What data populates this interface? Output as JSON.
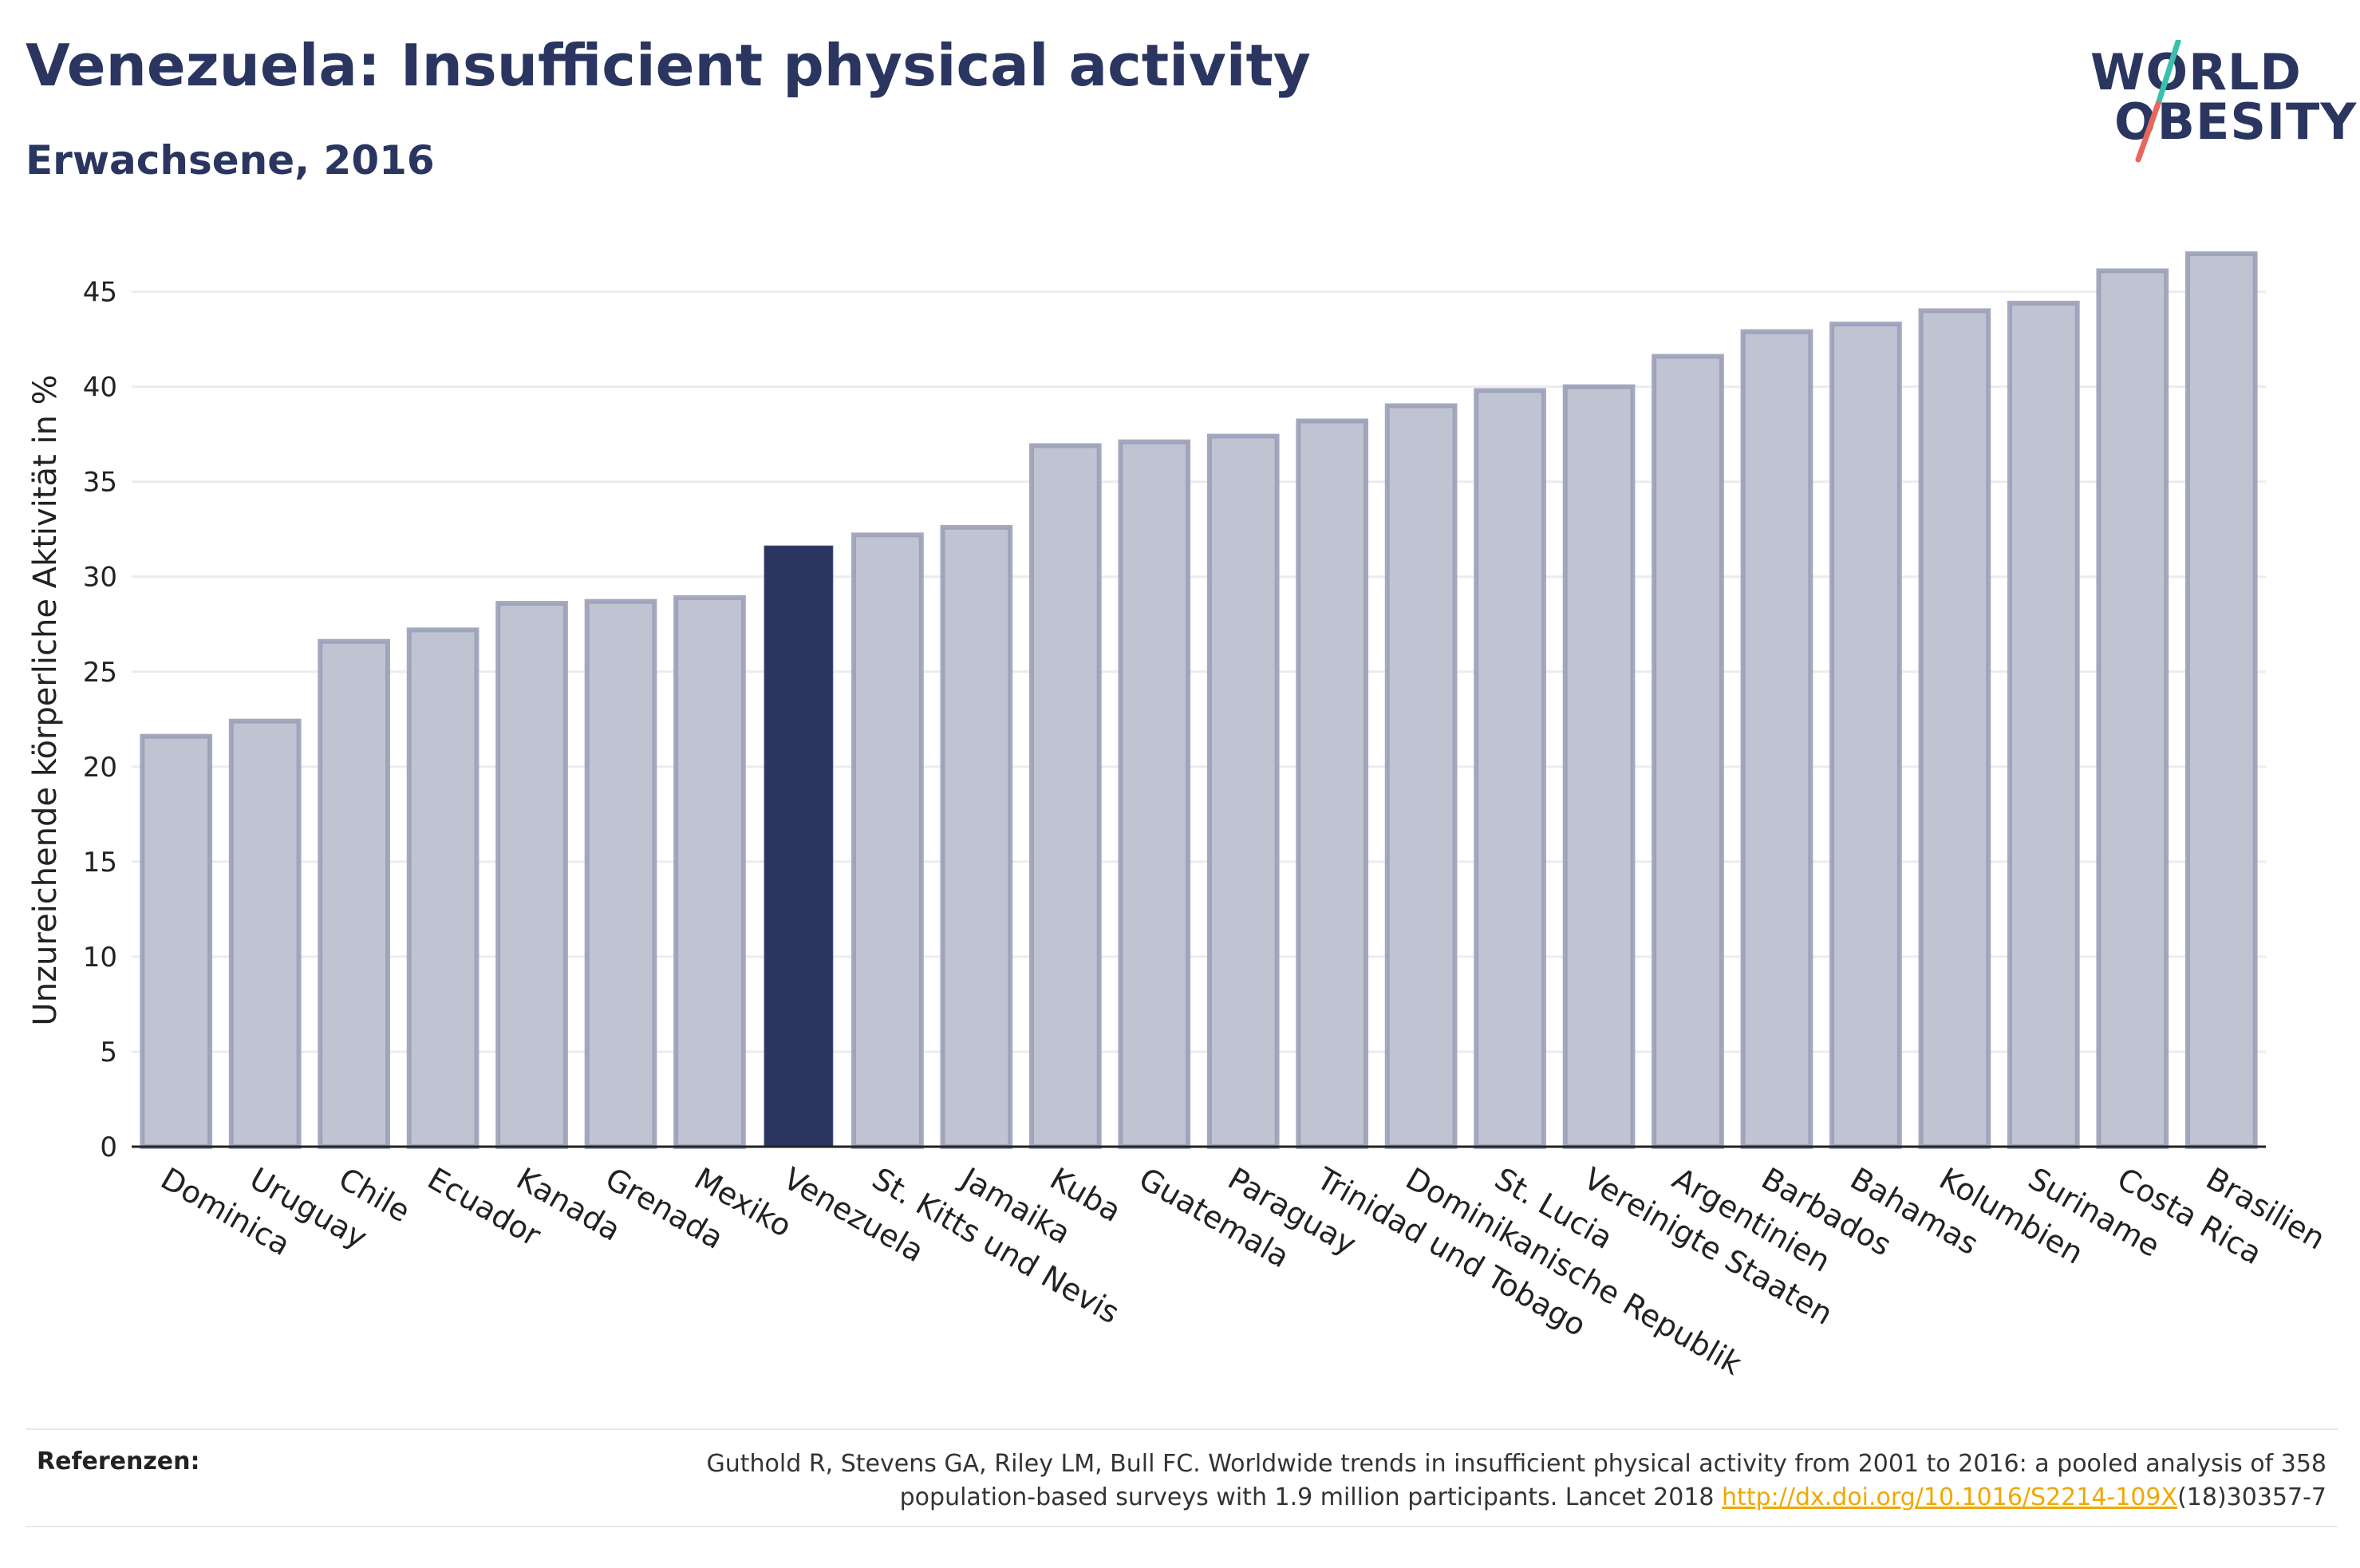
{
  "header": {
    "title": "Venezuela: Insufficient physical activity",
    "subtitle": "Erwachsene, 2016"
  },
  "logo": {
    "line1": "WORLD",
    "line2": "OBESITY"
  },
  "colors": {
    "bar": "#c0c4d2",
    "bar_stroke": "#9aa0b8",
    "highlight": "#2a3560",
    "title": "#2a3560"
  },
  "chart_data": {
    "type": "bar",
    "categories": [
      "Dominica",
      "Uruguay",
      "Chile",
      "Ecuador",
      "Kanada",
      "Grenada",
      "Mexiko",
      "Venezuela",
      "St. Kitts und Nevis",
      "Jamaika",
      "Kuba",
      "Guatemala",
      "Paraguay",
      "Trinidad und Tobago",
      "Dominikanische Republik",
      "St. Lucia",
      "Vereinigte Staaten",
      "Argentinien",
      "Barbados",
      "Bahamas",
      "Kolumbien",
      "Suriname",
      "Costa Rica",
      "Brasilien"
    ],
    "values": [
      21.6,
      22.4,
      26.6,
      27.2,
      28.6,
      28.7,
      28.9,
      31.6,
      32.2,
      32.6,
      36.9,
      37.1,
      37.4,
      38.2,
      39.0,
      39.8,
      40.0,
      41.6,
      42.9,
      43.3,
      44.0,
      44.4,
      46.1,
      47.0
    ],
    "highlight": "Venezuela",
    "ylabel": "Unzureichende körperliche Aktivität in %",
    "xlabel": "",
    "ylim": [
      0,
      47
    ],
    "yticks": [
      0,
      5,
      10,
      15,
      20,
      25,
      30,
      35,
      40,
      45
    ],
    "grid": true
  },
  "references": {
    "label": "Referenzen:",
    "line1": "Guthold R, Stevens GA, Riley LM, Bull FC. Worldwide trends in insufficient physical activity from 2001 to 2016: a pooled analysis of 358",
    "line2_pre": "population-based surveys with 1.9 million participants. Lancet 2018 ",
    "link": "http://dx.doi.org/10.1016/S2214-109X",
    "line2_post": "(18)30357-7"
  }
}
